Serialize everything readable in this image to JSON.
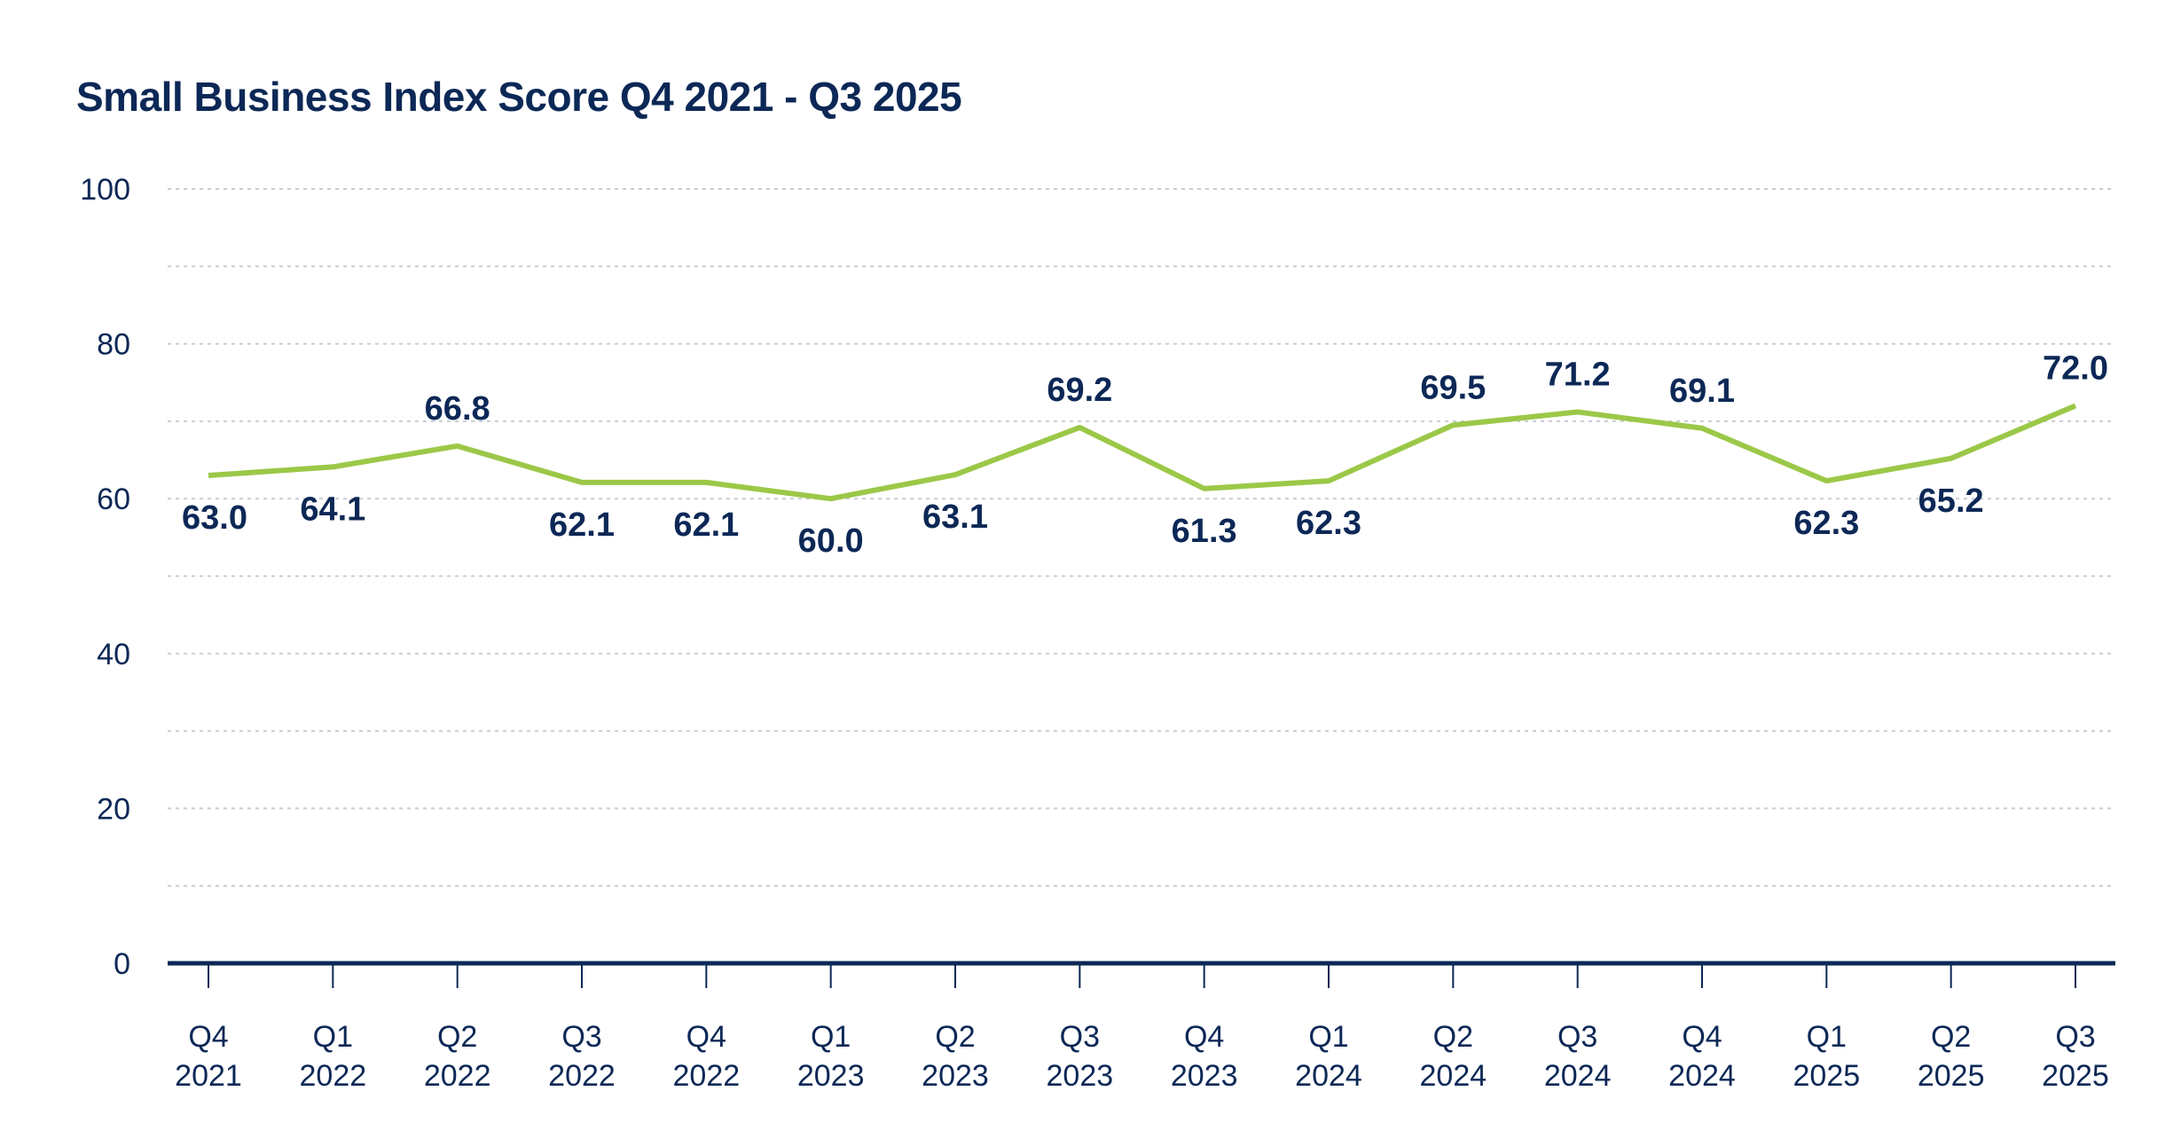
{
  "chart_data": {
    "type": "line",
    "title": "Small Business Index Score Q4 2021 - Q3 2025",
    "xlabel": "",
    "ylabel": "",
    "categories": [
      [
        "Q4",
        "2021"
      ],
      [
        "Q1",
        "2022"
      ],
      [
        "Q2",
        "2022"
      ],
      [
        "Q3",
        "2022"
      ],
      [
        "Q4",
        "2022"
      ],
      [
        "Q1",
        "2023"
      ],
      [
        "Q2",
        "2023"
      ],
      [
        "Q3",
        "2023"
      ],
      [
        "Q4",
        "2023"
      ],
      [
        "Q1",
        "2024"
      ],
      [
        "Q2",
        "2024"
      ],
      [
        "Q3",
        "2024"
      ],
      [
        "Q4",
        "2024"
      ],
      [
        "Q1",
        "2025"
      ],
      [
        "Q2",
        "2025"
      ],
      [
        "Q3",
        "2025"
      ]
    ],
    "values": [
      63.0,
      64.1,
      66.8,
      62.1,
      62.1,
      60.0,
      63.1,
      69.2,
      61.3,
      62.3,
      69.5,
      71.2,
      69.1,
      62.3,
      65.2,
      72.0
    ],
    "data_labels": [
      "63.0",
      "64.1",
      "66.8",
      "62.1",
      "62.1",
      "60.0",
      "63.1",
      "69.2",
      "61.3",
      "62.3",
      "69.5",
      "71.2",
      "69.1",
      "62.3",
      "65.2",
      "72.0"
    ],
    "label_positions": [
      "below",
      "below",
      "above",
      "below",
      "below",
      "below",
      "below",
      "above",
      "below",
      "below",
      "above",
      "above",
      "above",
      "below",
      "below",
      "above"
    ],
    "ylim": [
      0,
      100
    ],
    "yticks": [
      "0",
      "20",
      "40",
      "60",
      "80",
      "100"
    ],
    "grid": "dashed horizontal every 10",
    "legend": "none",
    "colors": {
      "line": "#9bc848",
      "text": "#0c2856",
      "grid": "#c9ccd3"
    }
  }
}
